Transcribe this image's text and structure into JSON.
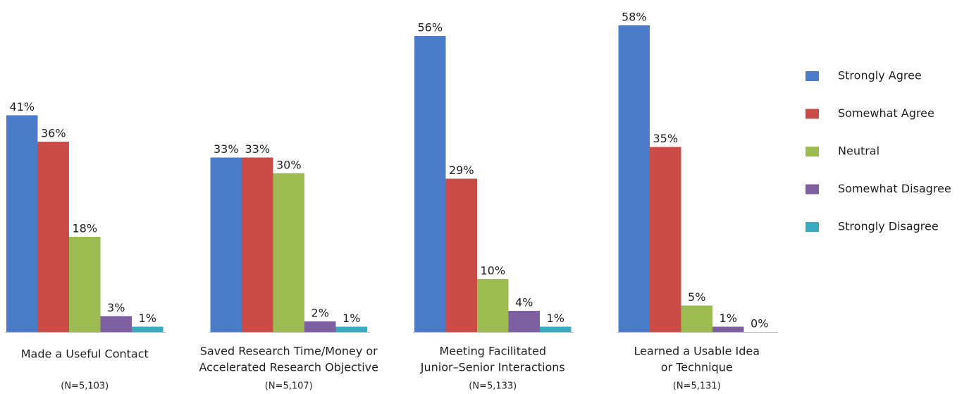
{
  "chart_data": {
    "type": "bar",
    "categories": [
      [
        "Made a Useful Contact"
      ],
      [
        "Saved Research Time/Money or",
        "Accelerated Research Objective"
      ],
      [
        "Meeting Facilitated",
        "Junior–Senior Interactions"
      ],
      [
        "Learned a Usable Idea",
        "or Technique"
      ]
    ],
    "sample_sizes": [
      "(N=5,103)",
      "(N=5,107)",
      "(N=5,133)",
      "(N=5,131)"
    ],
    "series": [
      {
        "name": "Strongly Agree",
        "color": "#4a7cc9",
        "values": [
          41,
          33,
          56,
          58
        ],
        "value_labels": [
          "41%",
          "33%",
          "56%",
          "58%"
        ]
      },
      {
        "name": "Somewhat Agree",
        "color": "#cb4b47",
        "values": [
          36,
          33,
          29,
          35
        ],
        "value_labels": [
          "36%",
          "33%",
          "29%",
          "35%"
        ]
      },
      {
        "name": "Neutral",
        "color": "#9cbc52",
        "values": [
          18,
          30,
          10,
          5
        ],
        "value_labels": [
          "18%",
          "30%",
          "10%",
          "5%"
        ]
      },
      {
        "name": "Somewhat Disagree",
        "color": "#7e60a2",
        "values": [
          3,
          2,
          4,
          1
        ],
        "value_labels": [
          "3%",
          "2%",
          "4%",
          "1%"
        ]
      },
      {
        "name": "Strongly Disagree",
        "color": "#3aaac1",
        "values": [
          1,
          1,
          1,
          0
        ],
        "value_labels": [
          "1%",
          "1%",
          "1%",
          "0%"
        ]
      }
    ],
    "legend": "right"
  }
}
